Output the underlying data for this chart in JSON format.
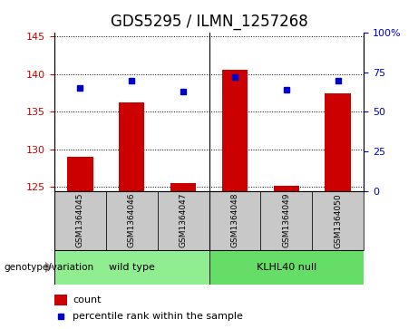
{
  "title": "GDS5295 / ILMN_1257268",
  "samples": [
    "GSM1364045",
    "GSM1364046",
    "GSM1364047",
    "GSM1364048",
    "GSM1364049",
    "GSM1364050"
  ],
  "counts": [
    129.0,
    136.2,
    125.5,
    140.6,
    125.2,
    137.5
  ],
  "percentiles": [
    65.0,
    70.0,
    63.0,
    72.0,
    64.0,
    70.0
  ],
  "ylim_left": [
    124.5,
    145.5
  ],
  "ylim_right": [
    0,
    100
  ],
  "yticks_left": [
    125,
    130,
    135,
    140,
    145
  ],
  "yticks_right": [
    0,
    25,
    50,
    75,
    100
  ],
  "ytick_labels_right": [
    "0",
    "25",
    "50",
    "75",
    "100%"
  ],
  "bar_color": "#cc0000",
  "dot_color": "#0000cc",
  "bar_baseline": 124.5,
  "wild_type_color": "#90ee90",
  "klhl40_color": "#66dd66",
  "sample_box_color": "#c8c8c8",
  "group_label_prefix": "genotype/variation",
  "legend_count_label": "count",
  "legend_pct_label": "percentile rank within the sample",
  "title_fontsize": 12,
  "tick_label_color_left": "#cc0000",
  "tick_label_color_right": "#0000cc"
}
